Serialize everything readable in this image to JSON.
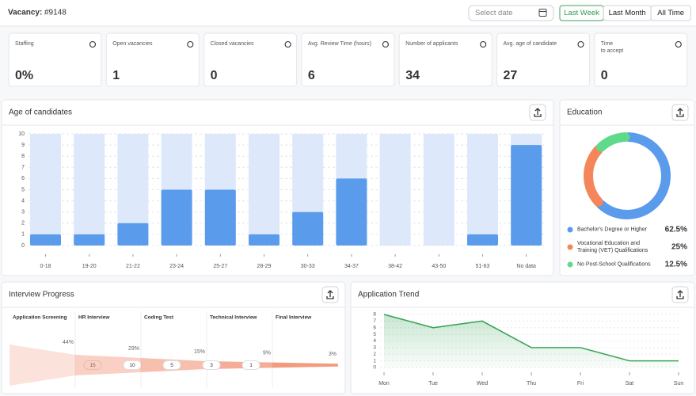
{
  "header": {
    "label": "Vacancy:",
    "vacancy_id": "#9148",
    "date_placeholder": "Select date",
    "ranges": [
      "Last Week",
      "Last Month",
      "All Time"
    ],
    "active_range": 0
  },
  "kpis": [
    {
      "label": "Staffing",
      "value": "0%"
    },
    {
      "label": "Open vacancies",
      "value": "1"
    },
    {
      "label": "Closed vacancies",
      "value": "0"
    },
    {
      "label": "Avg. Review Time (hours)",
      "value": "6"
    },
    {
      "label": "Number of applicants",
      "value": "34"
    },
    {
      "label": "Avg. age of candidate",
      "value": "27"
    },
    {
      "label": "Time\nto accept",
      "value": "0"
    }
  ],
  "chart_data": [
    {
      "type": "bar",
      "title": "Age of candidates",
      "categories": [
        "0-18",
        "19-20",
        "21-22",
        "23-24",
        "25-27",
        "28-29",
        "30-33",
        "34-37",
        "38-42",
        "43-50",
        "51-63",
        "No data"
      ],
      "values": [
        1,
        1,
        2,
        5,
        5,
        1,
        3,
        6,
        0,
        0,
        1,
        9
      ],
      "color": "#5b9bec",
      "track_color": "#dde8fb",
      "ylim": [
        0,
        10
      ],
      "yticks": [
        0,
        1,
        2,
        3,
        4,
        5,
        6,
        7,
        8,
        9,
        10
      ],
      "grid": true
    },
    {
      "type": "donut",
      "title": "Education",
      "categories": [
        "Bachelor's Degree or Higher",
        "Vocational Education and Training (VET) Qualifications",
        "No Post-School Qualifications"
      ],
      "values": [
        62.5,
        25,
        12.5
      ],
      "value_labels": [
        "62.5%",
        "25%",
        "12.5%"
      ],
      "colors": [
        "#5b9bec",
        "#f5855a",
        "#5fd98a"
      ]
    },
    {
      "type": "funnel",
      "title": "Interview Progress",
      "categories": [
        "Application Screening",
        "HR Interview",
        "Coding Test",
        "Technical Interview",
        "Final Interview"
      ],
      "values": [
        15,
        10,
        5,
        3,
        1
      ],
      "percent_values": [
        44,
        29,
        15,
        9,
        3
      ],
      "percent_labels": [
        "44%",
        "29%",
        "15%",
        "9%",
        "3%"
      ],
      "color": "#f08a6a"
    },
    {
      "type": "line",
      "title": "Application Trend",
      "categories": [
        "Mon",
        "Tue",
        "Wed",
        "Thu",
        "Fri",
        "Sat",
        "Sun"
      ],
      "values": [
        8,
        6,
        7,
        3,
        3,
        1,
        1
      ],
      "color": "#3aa65a",
      "ylim": [
        0,
        8
      ],
      "yticks": [
        0,
        1,
        2,
        3,
        4,
        5,
        6,
        7,
        8
      ],
      "grid": true
    }
  ]
}
